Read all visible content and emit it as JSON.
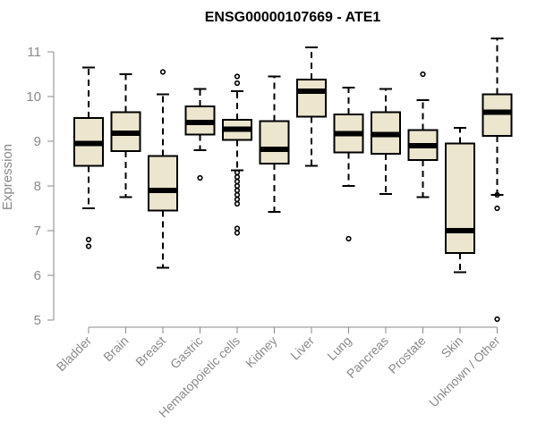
{
  "chart_data": {
    "type": "boxplot",
    "title": "ENSG00000107669 - ATE1",
    "xlabel": "",
    "ylabel": "Expression",
    "ylim": [
      5,
      11
    ],
    "yticks": [
      5,
      6,
      7,
      8,
      9,
      10,
      11
    ],
    "box_fill": "#ece6cf",
    "axis_color": "#8a8a8a",
    "categories": [
      "Bladder",
      "Brain",
      "Breast",
      "Gastric",
      "Hematopoietic cells",
      "Kidney",
      "Liver",
      "Lung",
      "Pancreas",
      "Prostate",
      "Skin",
      "Unknown / Other"
    ],
    "boxes": [
      {
        "whisker_low": 7.5,
        "q1": 8.45,
        "median": 8.95,
        "q3": 9.52,
        "whisker_high": 10.65,
        "outliers": [
          6.8,
          6.65
        ]
      },
      {
        "whisker_low": 7.75,
        "q1": 8.78,
        "median": 9.18,
        "q3": 9.65,
        "whisker_high": 10.5,
        "outliers": []
      },
      {
        "whisker_low": 6.17,
        "q1": 7.45,
        "median": 7.9,
        "q3": 8.67,
        "whisker_high": 10.05,
        "outliers": [
          10.55
        ]
      },
      {
        "whisker_low": 8.8,
        "q1": 9.15,
        "median": 9.42,
        "q3": 9.78,
        "whisker_high": 10.17,
        "outliers": [
          8.18
        ]
      },
      {
        "whisker_low": 8.35,
        "q1": 9.03,
        "median": 9.27,
        "q3": 9.48,
        "whisker_high": 10.12,
        "outliers": [
          10.45,
          10.3,
          8.3,
          8.2,
          8.1,
          8.0,
          7.9,
          7.8,
          7.7,
          7.6,
          7.05,
          6.95
        ]
      },
      {
        "whisker_low": 7.42,
        "q1": 8.5,
        "median": 8.82,
        "q3": 9.45,
        "whisker_high": 10.45,
        "outliers": []
      },
      {
        "whisker_low": 8.45,
        "q1": 9.55,
        "median": 10.12,
        "q3": 10.38,
        "whisker_high": 11.1,
        "outliers": []
      },
      {
        "whisker_low": 8.0,
        "q1": 8.75,
        "median": 9.17,
        "q3": 9.6,
        "whisker_high": 10.2,
        "outliers": [
          6.82
        ]
      },
      {
        "whisker_low": 7.82,
        "q1": 8.72,
        "median": 9.15,
        "q3": 9.65,
        "whisker_high": 10.17,
        "outliers": []
      },
      {
        "whisker_low": 7.75,
        "q1": 8.58,
        "median": 8.9,
        "q3": 9.25,
        "whisker_high": 9.92,
        "outliers": [
          10.5
        ]
      },
      {
        "whisker_low": 6.07,
        "q1": 6.5,
        "median": 7.0,
        "q3": 8.95,
        "whisker_high": 9.3,
        "outliers": []
      },
      {
        "whisker_low": 7.8,
        "q1": 9.12,
        "median": 9.65,
        "q3": 10.05,
        "whisker_high": 11.3,
        "outliers": [
          7.8,
          7.5,
          5.02
        ]
      }
    ]
  }
}
